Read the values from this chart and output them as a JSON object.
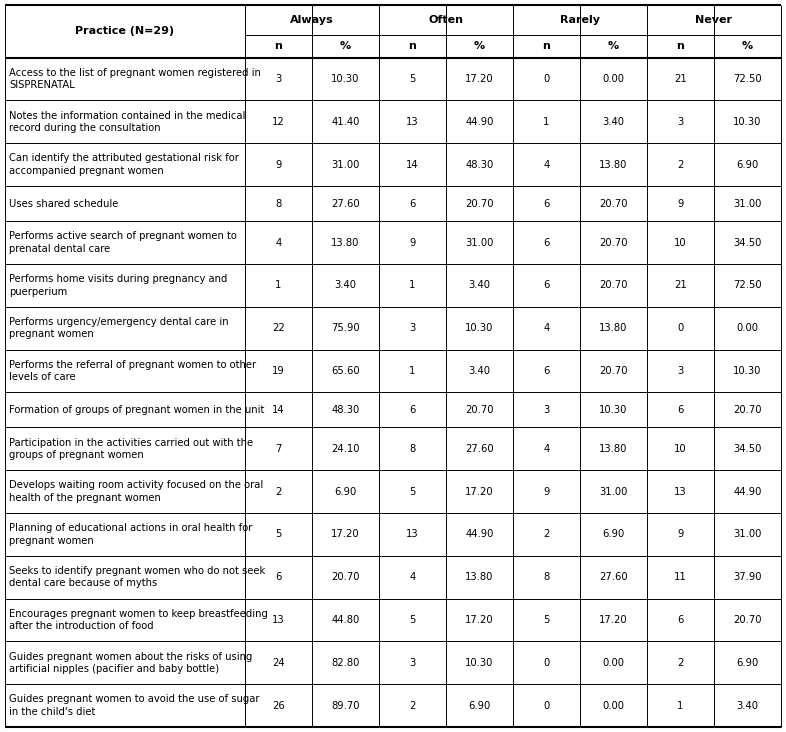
{
  "rows": [
    {
      "practice": "Access to the list of pregnant women registered in\nSISPRENATAL",
      "vals": [
        "3",
        "10.30",
        "5",
        "17.20",
        "0",
        "0.00",
        "21",
        "72.50"
      ]
    },
    {
      "practice": "Notes the information contained in the medical\nrecord during the consultation",
      "vals": [
        "12",
        "41.40",
        "13",
        "44.90",
        "1",
        "3.40",
        "3",
        "10.30"
      ]
    },
    {
      "practice": "Can identify the attributed gestational risk for\naccompanied pregnant women",
      "vals": [
        "9",
        "31.00",
        "14",
        "48.30",
        "4",
        "13.80",
        "2",
        "6.90"
      ]
    },
    {
      "practice": "Uses shared schedule",
      "vals": [
        "8",
        "27.60",
        "6",
        "20.70",
        "6",
        "20.70",
        "9",
        "31.00"
      ]
    },
    {
      "practice": "Performs active search of pregnant women to\nprenatal dental care",
      "vals": [
        "4",
        "13.80",
        "9",
        "31.00",
        "6",
        "20.70",
        "10",
        "34.50"
      ]
    },
    {
      "practice": "Performs home visits during pregnancy and\npuerperium",
      "vals": [
        "1",
        "3.40",
        "1",
        "3.40",
        "6",
        "20.70",
        "21",
        "72.50"
      ]
    },
    {
      "practice": "Performs urgency/emergency dental care in\npregnant women",
      "vals": [
        "22",
        "75.90",
        "3",
        "10.30",
        "4",
        "13.80",
        "0",
        "0.00"
      ]
    },
    {
      "practice": "Performs the referral of pregnant women to other\nlevels of care",
      "vals": [
        "19",
        "65.60",
        "1",
        "3.40",
        "6",
        "20.70",
        "3",
        "10.30"
      ]
    },
    {
      "practice": "Formation of groups of pregnant women in the unit",
      "vals": [
        "14",
        "48.30",
        "6",
        "20.70",
        "3",
        "10.30",
        "6",
        "20.70"
      ]
    },
    {
      "practice": "Participation in the activities carried out with the\ngroups of pregnant women",
      "vals": [
        "7",
        "24.10",
        "8",
        "27.60",
        "4",
        "13.80",
        "10",
        "34.50"
      ]
    },
    {
      "practice": "Develops waiting room activity focused on the oral\nhealth of the pregnant women",
      "vals": [
        "2",
        "6.90",
        "5",
        "17.20",
        "9",
        "31.00",
        "13",
        "44.90"
      ]
    },
    {
      "practice": "Planning of educational actions in oral health for\npregnant women",
      "vals": [
        "5",
        "17.20",
        "13",
        "44.90",
        "2",
        "6.90",
        "9",
        "31.00"
      ]
    },
    {
      "practice": "Seeks to identify pregnant women who do not seek\ndental care because of myths",
      "vals": [
        "6",
        "20.70",
        "4",
        "13.80",
        "8",
        "27.60",
        "11",
        "37.90"
      ]
    },
    {
      "practice": "Encourages pregnant women to keep breastfeeding\nafter the introduction of food",
      "vals": [
        "13",
        "44.80",
        "5",
        "17.20",
        "5",
        "17.20",
        "6",
        "20.70"
      ]
    },
    {
      "practice": "Guides pregnant women about the risks of using\nartificial nipples (pacifier and baby bottle)",
      "vals": [
        "24",
        "82.80",
        "3",
        "10.30",
        "0",
        "0.00",
        "2",
        "6.90"
      ]
    },
    {
      "practice": "Guides pregnant women to avoid the use of sugar\nin the child's diet",
      "vals": [
        "26",
        "89.70",
        "2",
        "6.90",
        "0",
        "0.00",
        "1",
        "3.40"
      ]
    }
  ],
  "groups": [
    "Always",
    "Often",
    "Rarely",
    "Never"
  ],
  "sub_headers": [
    "n",
    "%",
    "n",
    "%",
    "n",
    "%",
    "n",
    "%"
  ],
  "header_label": "Practice (N=29)",
  "font_size": 7.2,
  "header_font_size": 8.0,
  "lw_thick": 1.5,
  "lw_thin": 0.7
}
